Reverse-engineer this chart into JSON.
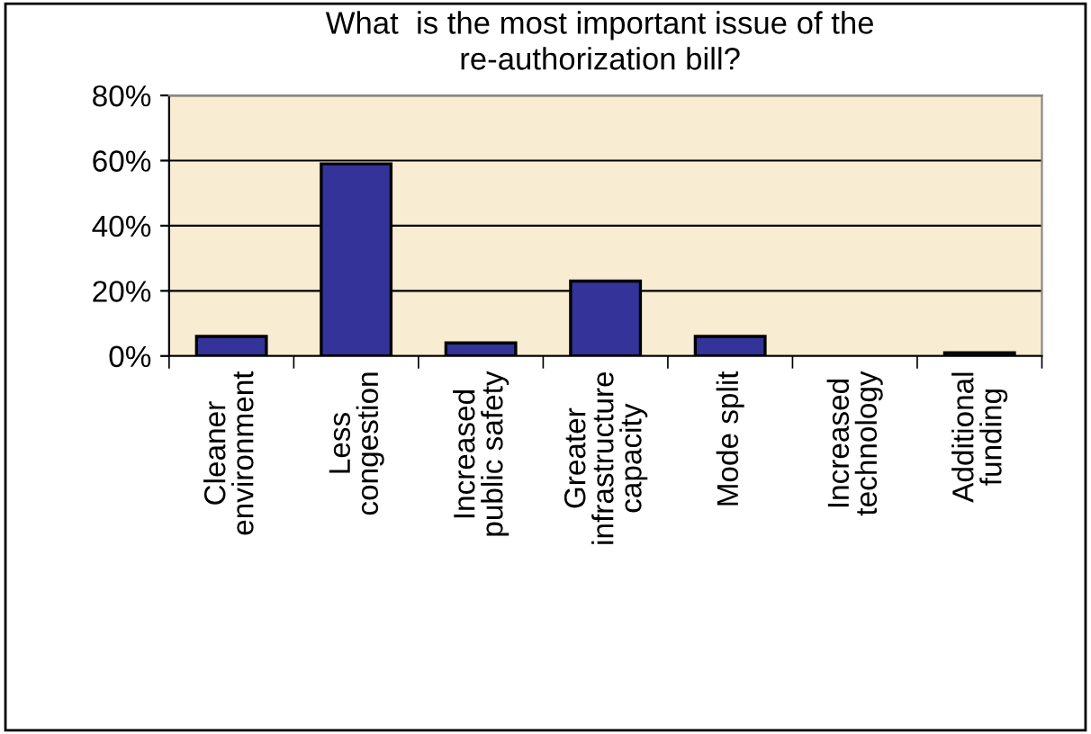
{
  "chart_data": {
    "type": "bar",
    "title": "What  is the most important issue of the\nre-authorization bill?",
    "categories": [
      "Cleaner\nenvironment",
      "Less\ncongestion",
      "Increased\npublic safety",
      "Greater\ninfrastructure\ncapacity",
      "Mode split",
      "Increased\ntechnology",
      "Additional\nfunding"
    ],
    "values": [
      6,
      59,
      4,
      23,
      6,
      0,
      1
    ],
    "color": "#333399",
    "ylim": [
      0,
      80
    ],
    "yticks": [
      {
        "value": 0,
        "label": "0%"
      },
      {
        "value": 20,
        "label": "20%"
      },
      {
        "value": 40,
        "label": "40%"
      },
      {
        "value": 60,
        "label": "60%"
      },
      {
        "value": 80,
        "label": "80%"
      }
    ],
    "grid": "y",
    "legend": false
  }
}
